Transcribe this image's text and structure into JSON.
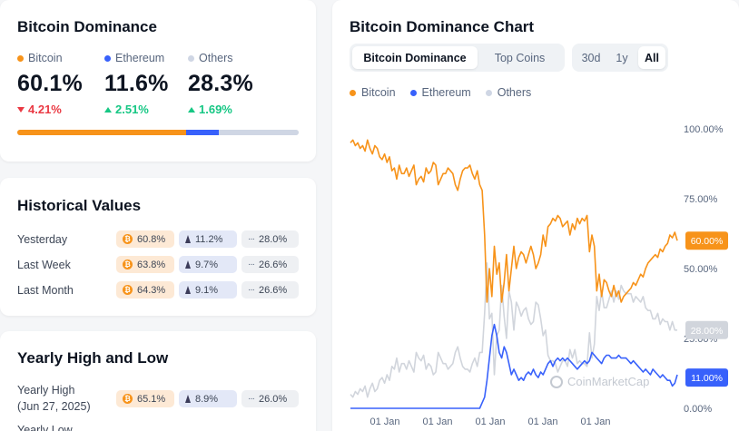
{
  "dominance": {
    "title": "Bitcoin Dominance",
    "items": [
      {
        "name": "Bitcoin",
        "value": "60.1%",
        "change": "4.21%",
        "direction": "down",
        "color": "#f7931a",
        "share": 60.1
      },
      {
        "name": "Ethereum",
        "value": "11.6%",
        "change": "2.51%",
        "direction": "up",
        "color": "#3861fb",
        "share": 11.6
      },
      {
        "name": "Others",
        "value": "28.3%",
        "change": "1.69%",
        "direction": "up",
        "color": "#cfd6e4",
        "share": 28.3
      }
    ]
  },
  "historical": {
    "title": "Historical Values",
    "rows": [
      {
        "label": "Yesterday",
        "btc": "60.8%",
        "eth": "11.2%",
        "others": "28.0%"
      },
      {
        "label": "Last Week",
        "btc": "63.8%",
        "eth": "9.7%",
        "others": "26.6%"
      },
      {
        "label": "Last Month",
        "btc": "64.3%",
        "eth": "9.1%",
        "others": "26.6%"
      }
    ]
  },
  "yearly": {
    "title": "Yearly High and Low",
    "high": {
      "label": "Yearly High",
      "date": "(Jun 27, 2025)",
      "btc": "65.1%",
      "eth": "8.9%",
      "others": "26.0%"
    },
    "low": {
      "label": "Yearly Low"
    }
  },
  "chart": {
    "title": "Bitcoin Dominance Chart",
    "tabs": [
      "Bitcoin Dominance",
      "Top Coins"
    ],
    "ranges": [
      "30d",
      "1y",
      "All"
    ],
    "active_range": "All",
    "watermark": "CoinMarketCap"
  },
  "chart_data": {
    "type": "line",
    "ylim": [
      0,
      100
    ],
    "y_ticks": [
      "100.00%",
      "75.00%",
      "50.00%",
      "25.00%",
      "0.00%"
    ],
    "x_ticks": [
      "01 Jan",
      "01 Jan",
      "01 Jan",
      "01 Jan",
      "01 Jan"
    ],
    "legend": [
      "Bitcoin",
      "Ethereum",
      "Others"
    ],
    "current_labels": [
      {
        "series": "Bitcoin",
        "text": "60.00%",
        "value": 60.0,
        "color": "#f7931a"
      },
      {
        "series": "Others",
        "text": "28.00%",
        "value": 28.0,
        "color": "#d1d5dc"
      },
      {
        "series": "Ethereum",
        "text": "11.00%",
        "value": 11.0,
        "color": "#3861fb"
      }
    ],
    "series": [
      {
        "name": "Bitcoin",
        "color": "#f7931a",
        "values": [
          95,
          96,
          94,
          95,
          93,
          94,
          92,
          96,
          93,
          91,
          94,
          93,
          90,
          89,
          91,
          88,
          90,
          85,
          86,
          82,
          87,
          84,
          84,
          86,
          83,
          85,
          87,
          80,
          82,
          83,
          81,
          86,
          84,
          85,
          88,
          87,
          80,
          82,
          84,
          84,
          86,
          85,
          84,
          80,
          78,
          82,
          85,
          86,
          86,
          87,
          84,
          82,
          85,
          80,
          78,
          62,
          38,
          50,
          40,
          58,
          48,
          52,
          38,
          45,
          55,
          42,
          50,
          58,
          50,
          54,
          56,
          55,
          52,
          55,
          58,
          55,
          50,
          52,
          55,
          62,
          58,
          65,
          66,
          68,
          67,
          69,
          68,
          65,
          66,
          67,
          62,
          66,
          64,
          68,
          66,
          68,
          67,
          69,
          56,
          62,
          58,
          42,
          48,
          40,
          46,
          45,
          42,
          40,
          44,
          40,
          42,
          38,
          40,
          41,
          42,
          43,
          45,
          44,
          46,
          48,
          47,
          50,
          52,
          53,
          54,
          55,
          54,
          57,
          56,
          58,
          59,
          62,
          61,
          63,
          60
        ]
      },
      {
        "name": "Ethereum",
        "color": "#3861fb",
        "values": [
          0,
          0,
          0,
          0,
          0,
          0,
          0,
          0,
          0,
          0,
          0,
          0,
          0,
          0,
          0,
          0,
          0,
          0,
          0,
          0,
          0,
          0,
          0,
          0,
          0,
          0,
          0,
          0,
          0,
          0,
          0,
          0,
          0,
          0,
          0,
          0,
          0,
          0,
          0,
          0,
          0,
          0,
          0,
          0,
          0,
          0,
          0,
          0,
          0,
          0,
          0,
          0,
          0,
          0,
          2,
          4,
          10,
          18,
          26,
          30,
          26,
          20,
          18,
          22,
          20,
          16,
          12,
          14,
          12,
          10,
          11,
          10,
          12,
          13,
          12,
          14,
          12,
          11,
          13,
          12,
          14,
          16,
          17,
          15,
          17,
          18,
          17,
          18,
          17,
          18,
          17,
          16,
          15,
          14,
          15,
          16,
          17,
          16,
          17,
          20,
          19,
          18,
          17,
          16,
          18,
          19,
          19,
          18,
          18,
          18,
          19,
          18,
          18,
          18,
          17,
          16,
          17,
          16,
          15,
          14,
          13,
          14,
          13,
          12,
          14,
          13,
          12,
          11,
          12,
          11,
          10,
          10,
          8,
          9,
          12
        ]
      },
      {
        "name": "Others",
        "color": "#d1d5dc",
        "values": [
          5,
          4,
          6,
          5,
          7,
          6,
          8,
          4,
          7,
          9,
          6,
          7,
          10,
          11,
          9,
          12,
          10,
          15,
          14,
          18,
          13,
          16,
          16,
          14,
          17,
          15,
          13,
          20,
          18,
          17,
          19,
          14,
          16,
          15,
          12,
          13,
          20,
          18,
          16,
          16,
          14,
          15,
          16,
          20,
          22,
          18,
          15,
          14,
          14,
          13,
          16,
          18,
          15,
          20,
          20,
          34,
          52,
          32,
          34,
          12,
          26,
          28,
          44,
          33,
          25,
          42,
          38,
          28,
          38,
          36,
          33,
          35,
          36,
          32,
          30,
          31,
          38,
          37,
          32,
          26,
          28,
          19,
          17,
          17,
          16,
          13,
          15,
          17,
          17,
          15,
          21,
          18,
          21,
          16,
          17,
          16,
          16,
          15,
          27,
          18,
          23,
          40,
          35,
          42,
          36,
          36,
          39,
          42,
          38,
          42,
          39,
          44,
          42,
          41,
          41,
          41,
          38,
          40,
          39,
          38,
          40,
          36,
          35,
          35,
          32,
          32,
          34,
          30,
          32,
          31,
          31,
          28,
          31,
          28,
          28
        ]
      }
    ]
  }
}
